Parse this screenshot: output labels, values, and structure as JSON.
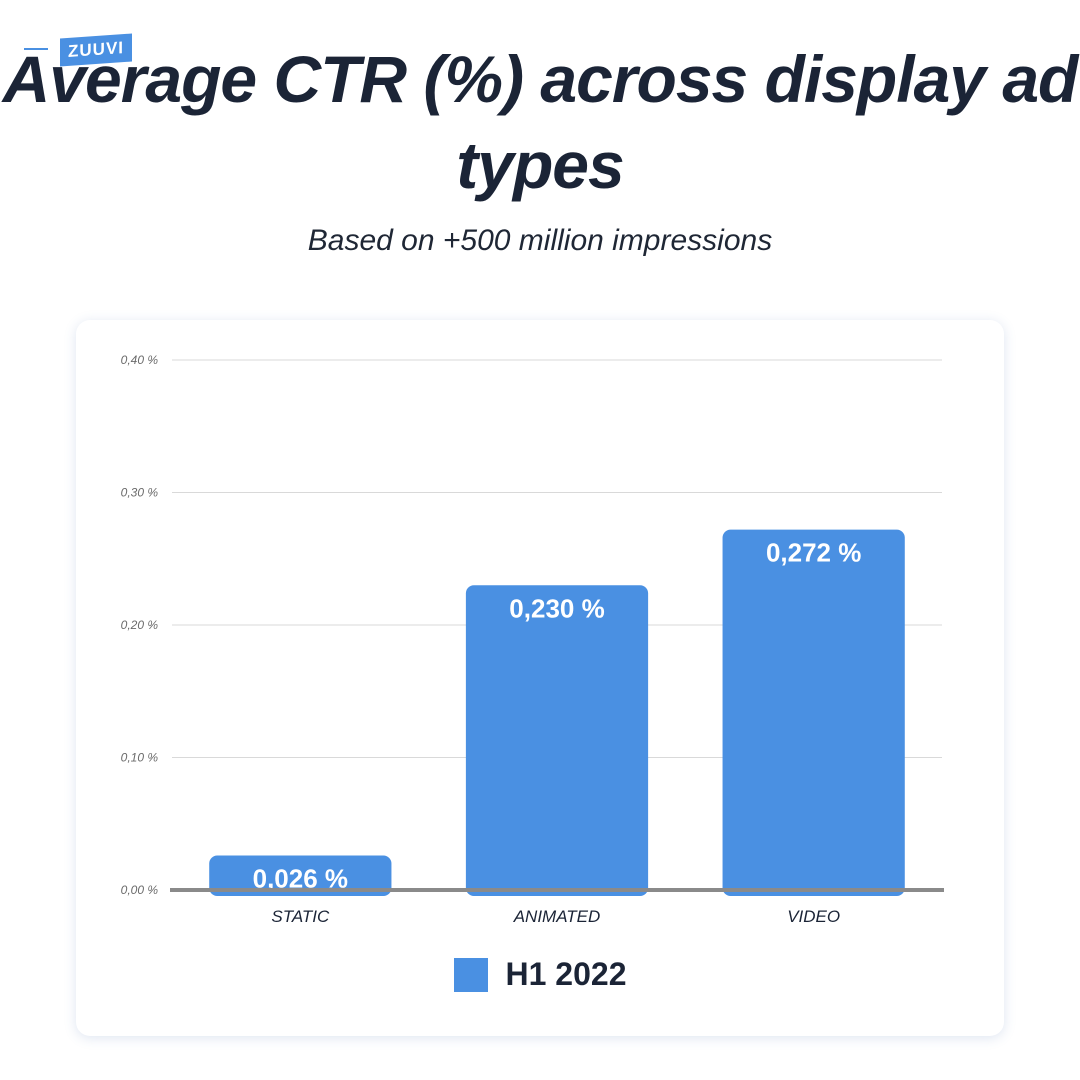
{
  "brand": {
    "logo_text": "ZUUVI",
    "color": "#4a90e2"
  },
  "header": {
    "title": "Average CTR (%) across display ad types",
    "subtitle": "Based on +500 million impressions"
  },
  "chart_data": {
    "type": "bar",
    "categories": [
      "STATIC",
      "ANIMATED",
      "VIDEO"
    ],
    "series": [
      {
        "name": "H1 2022",
        "values": [
          0.026,
          0.23,
          0.272
        ],
        "color": "#4a90e2"
      }
    ],
    "data_labels": [
      "0,026 %",
      "0,230 %",
      "0,272 %"
    ],
    "ylim": [
      0,
      0.4
    ],
    "yticks": [
      0,
      0.1,
      0.2,
      0.3,
      0.4
    ],
    "ytick_labels": [
      "0,00 %",
      "0,10 %",
      "0,20 %",
      "0,30 %",
      "0,40 %"
    ],
    "grid": true,
    "legend": "bottom-center"
  }
}
